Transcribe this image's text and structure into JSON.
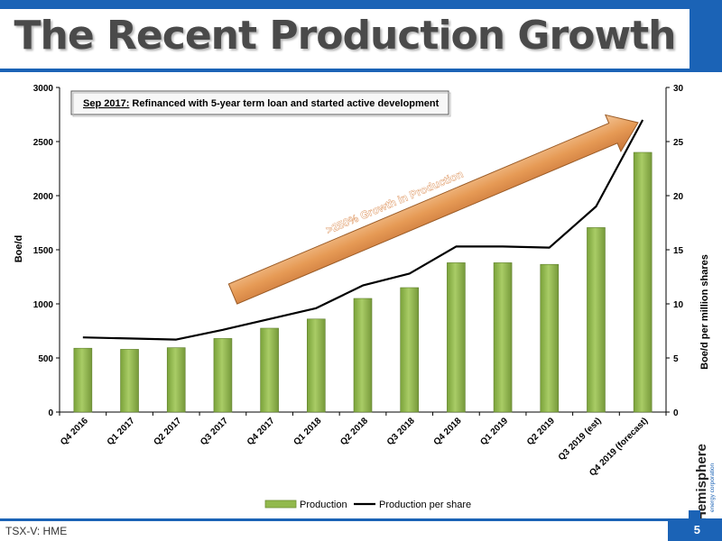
{
  "slide": {
    "title": "The Recent Production Growth",
    "footer_ticker": "TSX-V: HME",
    "page_number": "5",
    "logo_text": "Hemisphere",
    "logo_subtext": "energy corporation"
  },
  "colors": {
    "brand_blue": "#1b63b6",
    "bar_fill": "#92b94d",
    "line": "#000000",
    "arrow_fill": "#e69a55",
    "annotation_text": "#ffffff"
  },
  "chart_data": {
    "type": "bar",
    "categories": [
      "Q4 2016",
      "Q1 2017",
      "Q2 2017",
      "Q3 2017",
      "Q4 2017",
      "Q1 2018",
      "Q2 2018",
      "Q3 2018",
      "Q4 2018",
      "Q1 2019",
      "Q2 2019",
      "Q3 2019 (est)",
      "Q4 2019 (forecast)"
    ],
    "series": [
      {
        "name": "Production",
        "type": "bar",
        "axis": "left",
        "values": [
          590,
          580,
          595,
          680,
          775,
          860,
          1050,
          1150,
          1380,
          1380,
          1365,
          1705,
          2400
        ]
      },
      {
        "name": "Production per share",
        "type": "line",
        "axis": "right",
        "values": [
          6.9,
          6.8,
          6.7,
          7.6,
          8.6,
          9.6,
          11.7,
          12.8,
          15.3,
          15.3,
          15.2,
          19.0,
          27.0
        ]
      }
    ],
    "title": "",
    "xlabel": "",
    "ylabel": "Boe/d",
    "y2label": "Boe/d per million shares",
    "ylim": [
      0,
      3000
    ],
    "y2lim": [
      0,
      30
    ],
    "yticks": [
      0,
      500,
      1000,
      1500,
      2000,
      2500,
      3000
    ],
    "y2ticks": [
      0,
      5,
      10,
      15,
      20,
      25,
      30
    ],
    "grid": false,
    "legend": "bottom",
    "annotations": {
      "callout_prefix": "Sep 2017:",
      "callout_text": " Refinanced with 5-year term loan and started active development",
      "arrow_label": ">250% Growth in Production"
    }
  }
}
